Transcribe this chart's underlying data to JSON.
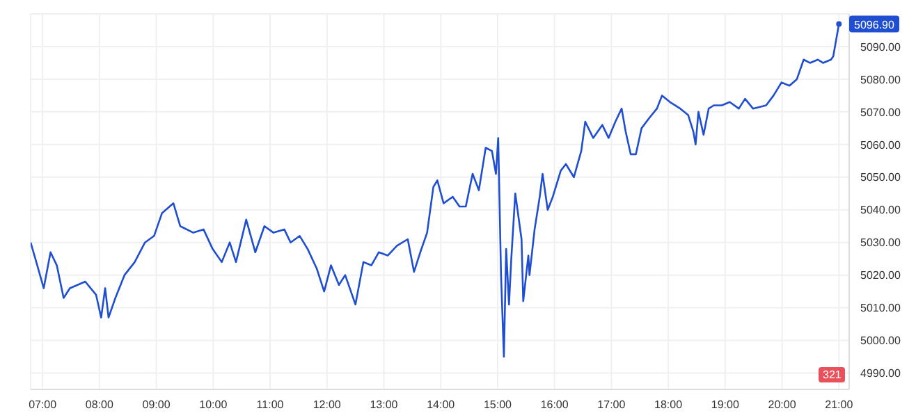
{
  "chart_data": {
    "type": "line",
    "x": [
      6.79,
      6.89,
      7.02,
      7.14,
      7.25,
      7.37,
      7.48,
      7.75,
      7.94,
      8.03,
      8.1,
      8.16,
      8.28,
      8.44,
      8.62,
      8.8,
      8.96,
      9.1,
      9.3,
      9.42,
      9.65,
      9.83,
      9.99,
      10.15,
      10.29,
      10.4,
      10.58,
      10.74,
      10.9,
      11.06,
      11.25,
      11.36,
      11.52,
      11.66,
      11.82,
      11.95,
      12.07,
      12.21,
      12.32,
      12.5,
      12.64,
      12.78,
      12.91,
      13.07,
      13.23,
      13.42,
      13.53,
      13.64,
      13.76,
      13.87,
      13.94,
      14.05,
      14.21,
      14.33,
      14.44,
      14.56,
      14.67,
      14.79,
      14.9,
      14.97,
      15.01,
      15.06,
      15.11,
      15.15,
      15.2,
      15.24,
      15.31,
      15.42,
      15.45,
      15.54,
      15.56,
      15.65,
      15.74,
      15.79,
      15.88,
      15.97,
      16.11,
      16.2,
      16.34,
      16.47,
      16.54,
      16.68,
      16.84,
      16.95,
      17.07,
      17.18,
      17.25,
      17.34,
      17.43,
      17.53,
      17.66,
      17.8,
      17.89,
      18.03,
      18.21,
      18.35,
      18.44,
      18.48,
      18.53,
      18.62,
      18.71,
      18.8,
      18.94,
      19.08,
      19.24,
      19.35,
      19.49,
      19.72,
      19.85,
      19.99,
      20.13,
      20.26,
      20.38,
      20.49,
      20.63,
      20.72,
      20.86,
      20.9,
      21.0
    ],
    "series": [
      {
        "color": "#1f4fd0",
        "values": [
          5030,
          5024,
          5016,
          5027,
          5023,
          5013,
          5016,
          5018,
          5014,
          5007,
          5016,
          5007,
          5013,
          5020,
          5024,
          5030,
          5032,
          5039,
          5042,
          5035,
          5033,
          5034,
          5028,
          5024,
          5030,
          5024,
          5037,
          5027,
          5035,
          5033,
          5034,
          5030,
          5032,
          5028,
          5022,
          5015,
          5023,
          5017,
          5020,
          5011,
          5024,
          5023,
          5027,
          5026,
          5029,
          5031,
          5021,
          5027,
          5033,
          5047,
          5049,
          5042,
          5044,
          5041,
          5041,
          5051,
          5046,
          5059,
          5058,
          5051,
          5062,
          5020,
          4995,
          5028,
          5011,
          5025,
          5045,
          5031,
          5012,
          5026,
          5020,
          5034,
          5044,
          5051,
          5040,
          5044,
          5052,
          5054,
          5050,
          5058,
          5067,
          5062,
          5066,
          5062,
          5067,
          5071,
          5064,
          5057,
          5057,
          5065,
          5068,
          5071,
          5075,
          5073,
          5071,
          5069,
          5064,
          5060,
          5070,
          5063,
          5071,
          5072,
          5072,
          5073,
          5071,
          5074,
          5071,
          5072,
          5075,
          5079,
          5078,
          5080,
          5086,
          5085,
          5086,
          5085,
          5086,
          5087,
          5096.9
        ]
      }
    ],
    "xlim": [
      6.79,
      21.18
    ],
    "xticks": [
      {
        "value": 7,
        "label": "07:00"
      },
      {
        "value": 8,
        "label": "08:00"
      },
      {
        "value": 9,
        "label": "09:00"
      },
      {
        "value": 10,
        "label": "10:00"
      },
      {
        "value": 11,
        "label": "11:00"
      },
      {
        "value": 12,
        "label": "12:00"
      },
      {
        "value": 13,
        "label": "13:00"
      },
      {
        "value": 14,
        "label": "14:00"
      },
      {
        "value": 15,
        "label": "15:00"
      },
      {
        "value": 16,
        "label": "16:00"
      },
      {
        "value": 17,
        "label": "17:00"
      },
      {
        "value": 18,
        "label": "18:00"
      },
      {
        "value": 19,
        "label": "19:00"
      },
      {
        "value": 20,
        "label": "20:00"
      },
      {
        "value": 21,
        "label": "21:00"
      }
    ],
    "ylim": [
      4985,
      5100
    ],
    "yticks": [
      {
        "value": 4990,
        "label": "4990.00"
      },
      {
        "value": 5000,
        "label": "5000.00"
      },
      {
        "value": 5010,
        "label": "5010.00"
      },
      {
        "value": 5020,
        "label": "5020.00"
      },
      {
        "value": 5030,
        "label": "5030.00"
      },
      {
        "value": 5040,
        "label": "5040.00"
      },
      {
        "value": 5050,
        "label": "5050.00"
      },
      {
        "value": 5060,
        "label": "5060.00"
      },
      {
        "value": 5070,
        "label": "5070.00"
      },
      {
        "value": 5080,
        "label": "5080.00"
      },
      {
        "value": 5090,
        "label": "5090.00"
      }
    ],
    "annotations": [
      {
        "text": "5096.90",
        "x": 21,
        "y": 5096.9
      },
      "321"
    ],
    "grid": true,
    "marker": "none",
    "line_style": "solid"
  }
}
